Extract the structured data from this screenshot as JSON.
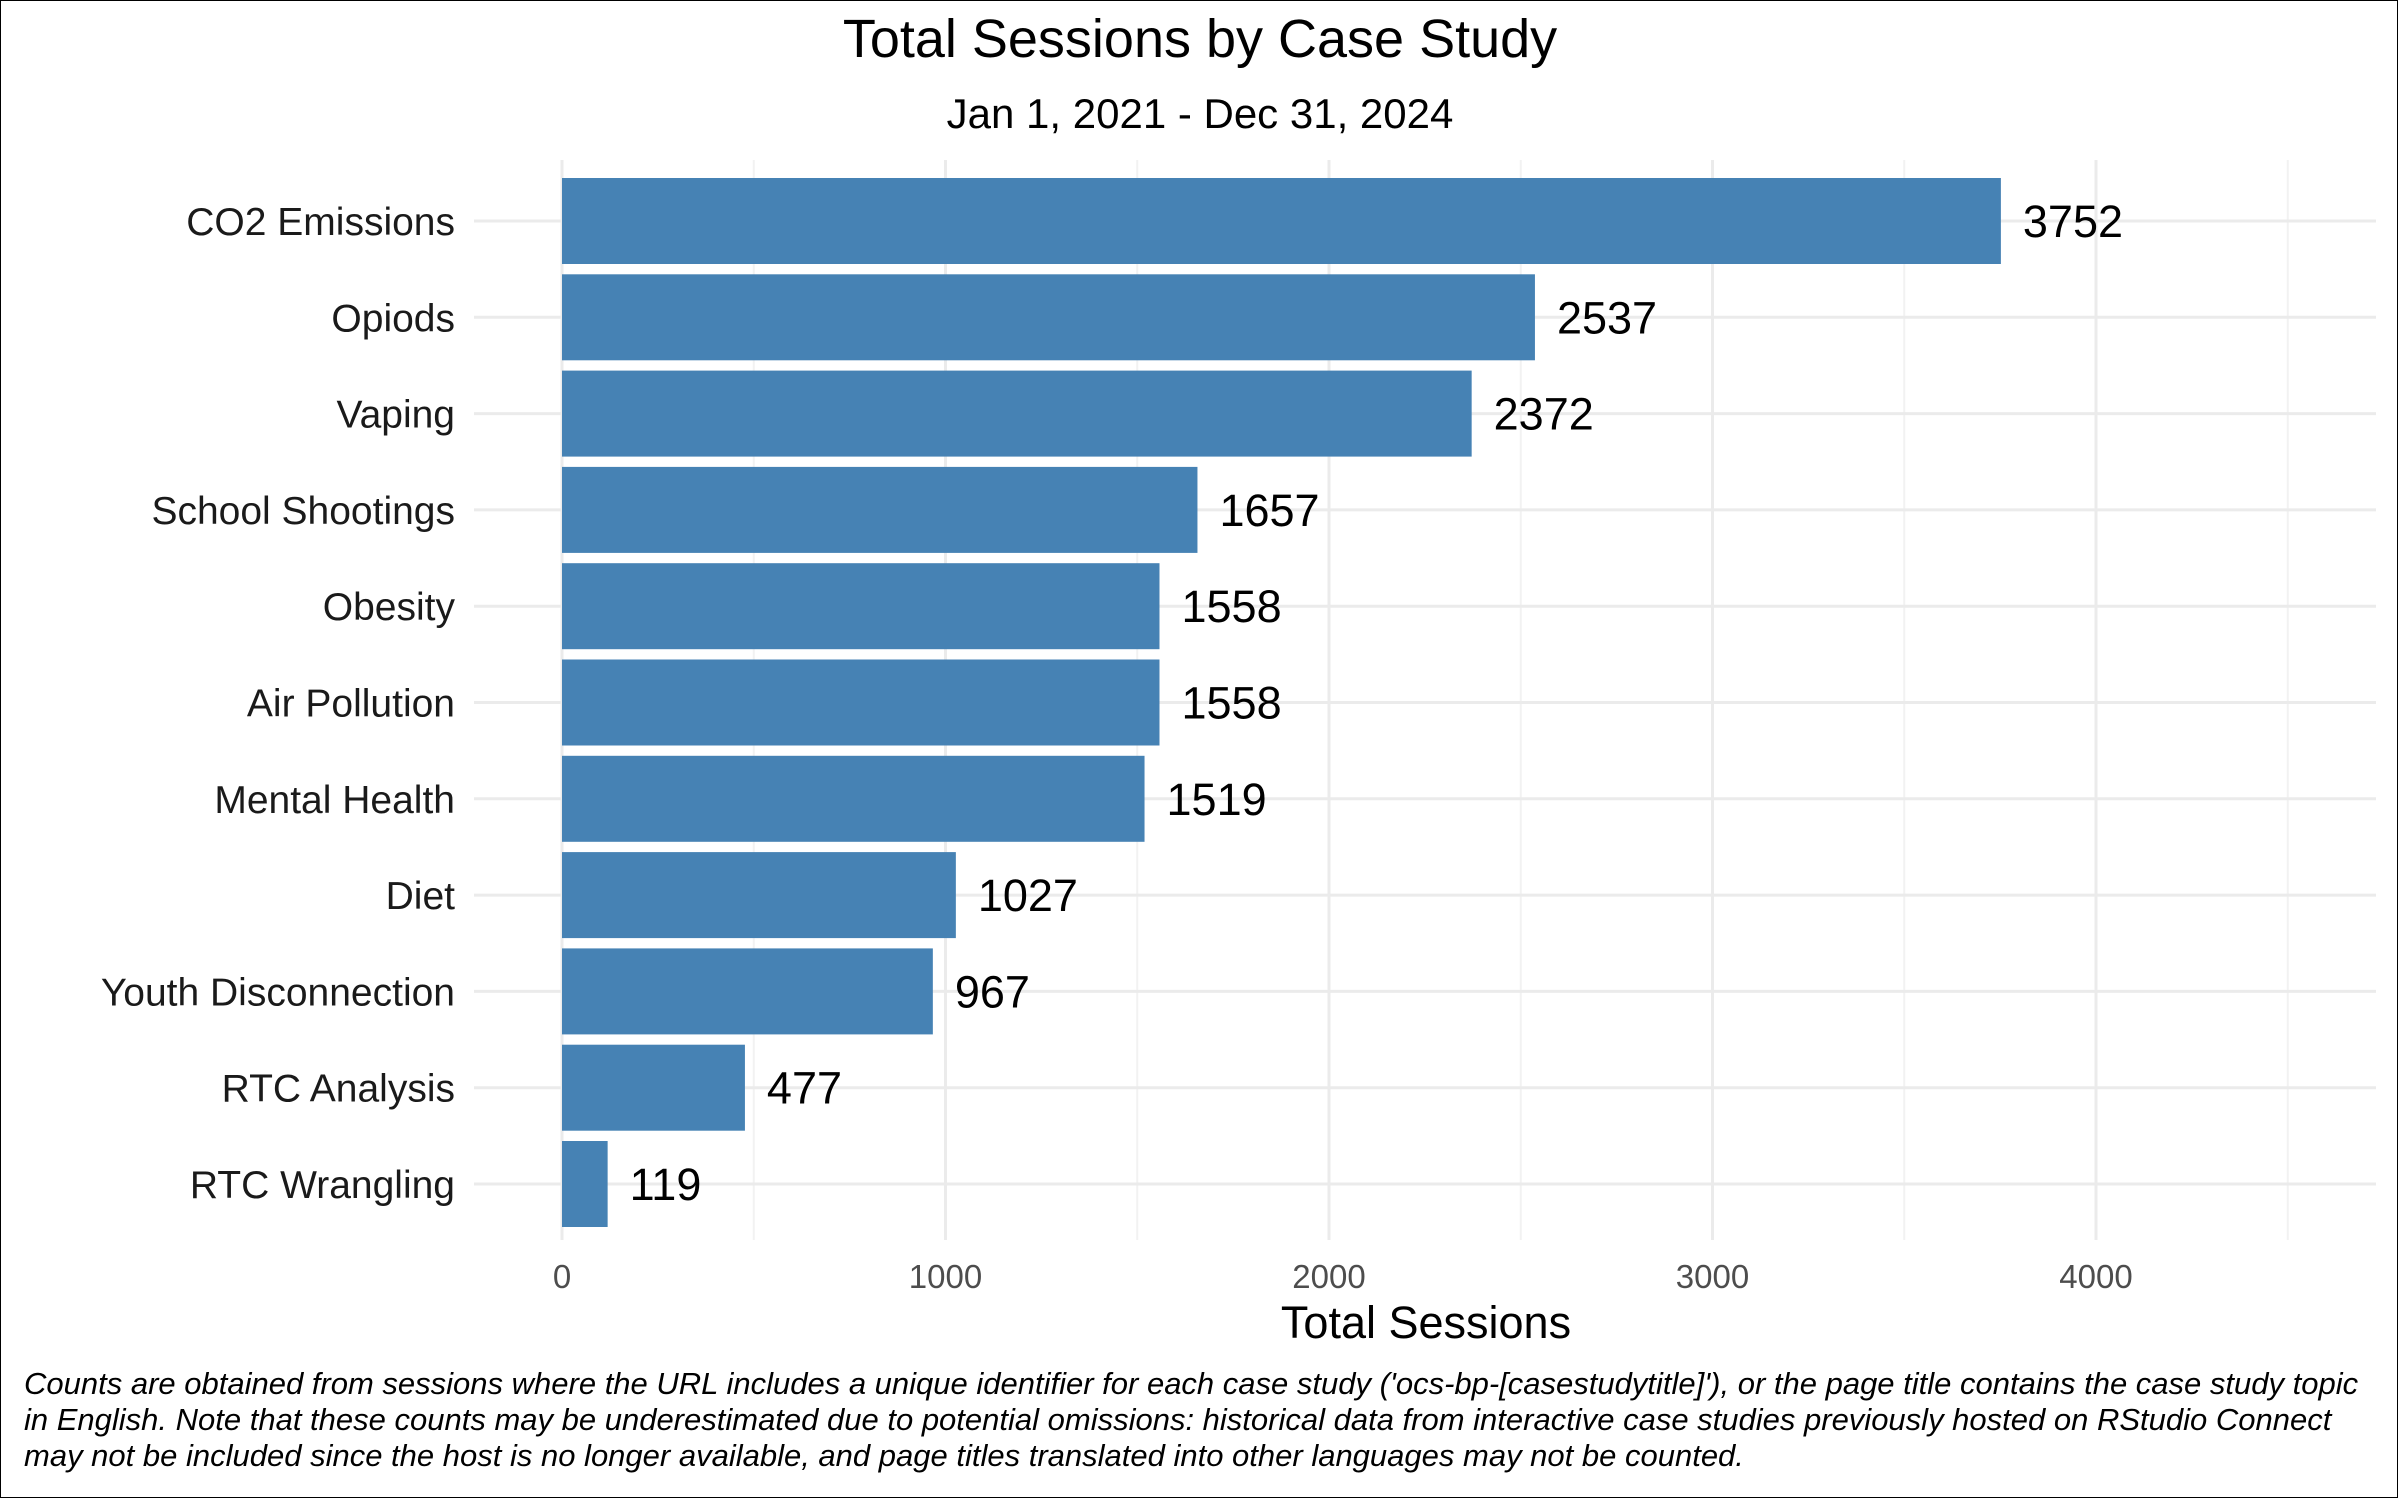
{
  "chart_data": {
    "type": "bar",
    "orientation": "horizontal",
    "title": "Total Sessions by Case Study",
    "subtitle": "Jan 1, 2021 - Dec 31, 2024",
    "xlabel": "Total Sessions",
    "ylabel": "",
    "xlim": [
      0,
      4500
    ],
    "x_ticks": [
      0,
      1000,
      2000,
      3000,
      4000
    ],
    "categories": [
      "CO2 Emissions",
      "Opiods",
      "Vaping",
      "School Shootings",
      "Obesity",
      "Air Pollution",
      "Mental Health",
      "Diet",
      "Youth Disconnection",
      "RTC Analysis",
      "RTC Wrangling"
    ],
    "values": [
      3752,
      2537,
      2372,
      1657,
      1558,
      1558,
      1519,
      1027,
      967,
      477,
      119
    ],
    "bar_color": "#4682b4",
    "grid": true,
    "legend": "none",
    "caption": "Counts are obtained from sessions where the URL includes a unique identifier for each case study ('ocs-bp-[casestudytitle]'), or the page title contains the case study topic in English. Note that these counts may be underestimated due to potential omissions: historical data from interactive case studies previously hosted on RStudio Connect may not be included since the host is no longer available, and page titles translated into other languages may not be counted."
  }
}
